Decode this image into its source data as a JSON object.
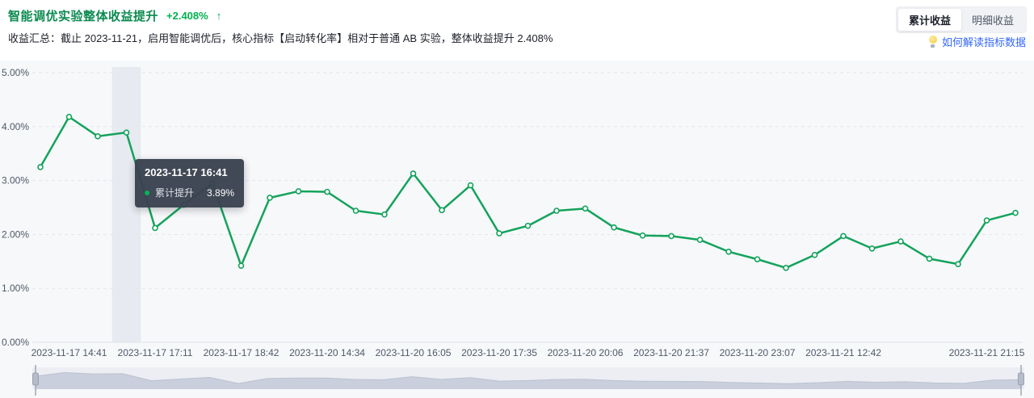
{
  "header": {
    "title": "智能调优实验整体收益提升",
    "delta": "+2.408%",
    "delta_arrow": "↑",
    "summary": "收益汇总：截止 2023-11-21，启用智能调优后，核心指标【启动转化率】相对于普通 AB 实验，整体收益提升 2.408%",
    "toggle": {
      "options": [
        {
          "label": "累计收益",
          "active": true
        },
        {
          "label": "明细收益",
          "active": false
        }
      ]
    },
    "help_link": {
      "icon": "lightbulb-icon",
      "label": "如何解读指标数据"
    }
  },
  "tooltip": {
    "title": "2023-11-17 16:41",
    "series_label": "累计提升",
    "value": "3.89%"
  },
  "chart_data": {
    "type": "line",
    "series": [
      {
        "name": "累计提升",
        "values": [
          3.25,
          4.18,
          3.82,
          3.89,
          2.12,
          2.55,
          2.95,
          1.42,
          2.68,
          2.8,
          2.79,
          2.44,
          2.37,
          3.13,
          2.45,
          2.91,
          2.02,
          2.16,
          2.44,
          2.48,
          2.13,
          1.98,
          1.97,
          1.9,
          1.68,
          1.54,
          1.38,
          1.62,
          1.97,
          1.74,
          1.87,
          1.55,
          1.45,
          2.26,
          2.4
        ]
      }
    ],
    "values": [
      3.25,
      4.18,
      3.82,
      3.89,
      2.12,
      2.55,
      2.95,
      1.42,
      2.68,
      2.8,
      2.79,
      2.44,
      2.37,
      3.13,
      2.45,
      2.91,
      2.02,
      2.16,
      2.44,
      2.48,
      2.13,
      1.98,
      1.97,
      1.9,
      1.68,
      1.54,
      1.38,
      1.62,
      1.97,
      1.74,
      1.87,
      1.55,
      1.45,
      2.26,
      2.4
    ],
    "unit": "%",
    "x_labels": [
      "2023-11-17 14:41",
      "2023-11-17 17:11",
      "2023-11-17 18:42",
      "2023-11-20 14:34",
      "2023-11-20 16:05",
      "2023-11-20 17:35",
      "2023-11-20 20:06",
      "2023-11-20 21:37",
      "2023-11-20 23:07",
      "2023-11-21 12:42",
      "2023-11-21 21:15"
    ],
    "x_label_indices": [
      1,
      4,
      7,
      10,
      13,
      16,
      19,
      22,
      25,
      28,
      33
    ],
    "y_ticks": [
      "5.00%",
      "4.00%",
      "3.00%",
      "2.00%",
      "1.00%",
      "0.00%"
    ],
    "ylim": [
      0,
      5
    ],
    "grid": true,
    "legend_position": "none",
    "highlight_index": 3,
    "line_color": "#14a35c"
  },
  "colors": {
    "title_green": "#0b8a50",
    "delta_green": "#00b14e",
    "link_blue": "#3366ff",
    "tooltip_bg": "#3a4250",
    "chart_bg": "#f7f8fa",
    "highlight_band": "#e8eaf1",
    "grid_line": "#e2e5ec",
    "axis_line": "#dfe2e9",
    "datazoom_track": "#eceef4",
    "datazoom_fill": "#c9cfdc",
    "datazoom_stroke": "#bac1d0",
    "datazoom_handle": "#b6bcc9",
    "datazoom_handle_line": "#99a1b0"
  }
}
